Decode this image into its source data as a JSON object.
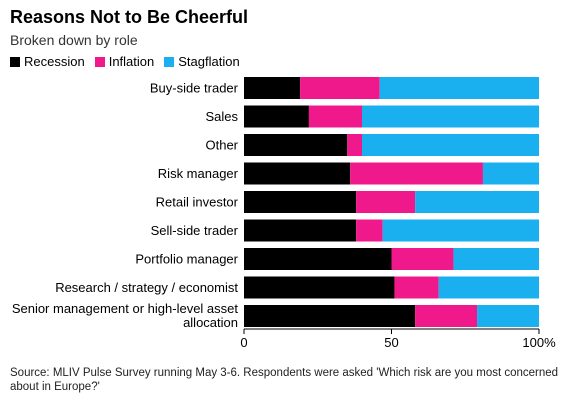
{
  "header": {
    "title": "Reasons Not to Be Cheerful",
    "subtitle": "Broken down by role"
  },
  "legend": [
    {
      "label": "Recession",
      "color": "#000000"
    },
    {
      "label": "Inflation",
      "color": "#f0198c"
    },
    {
      "label": "Stagflation",
      "color": "#1ab0f0"
    }
  ],
  "chart_data": {
    "type": "bar",
    "orientation": "horizontal",
    "stacked": true,
    "categories": [
      "Buy-side trader",
      "Sales",
      "Other",
      "Risk manager",
      "Retail investor",
      "Sell-side trader",
      "Portfolio manager",
      "Research / strategy / economist",
      "Senior management or high-level asset allocation"
    ],
    "series": [
      {
        "name": "Recession",
        "color": "#000000",
        "values": [
          19,
          22,
          35,
          36,
          38,
          38,
          50,
          51,
          58
        ]
      },
      {
        "name": "Inflation",
        "color": "#f0198c",
        "values": [
          27,
          18,
          5,
          45,
          20,
          9,
          21,
          15,
          21
        ]
      },
      {
        "name": "Stagflation",
        "color": "#1ab0f0",
        "values": [
          54,
          60,
          60,
          19,
          42,
          53,
          29,
          34,
          21
        ]
      }
    ],
    "xlim": [
      0,
      100
    ],
    "xticks": [
      "0",
      "50",
      "100%"
    ],
    "xtick_values": [
      0,
      50,
      100
    ],
    "legend_position": "top-left"
  },
  "footer": {
    "source": "Source: MLIV Pulse Survey running May 3-6. Respondents were asked 'Which risk are you most concerned about in Europe?'"
  }
}
